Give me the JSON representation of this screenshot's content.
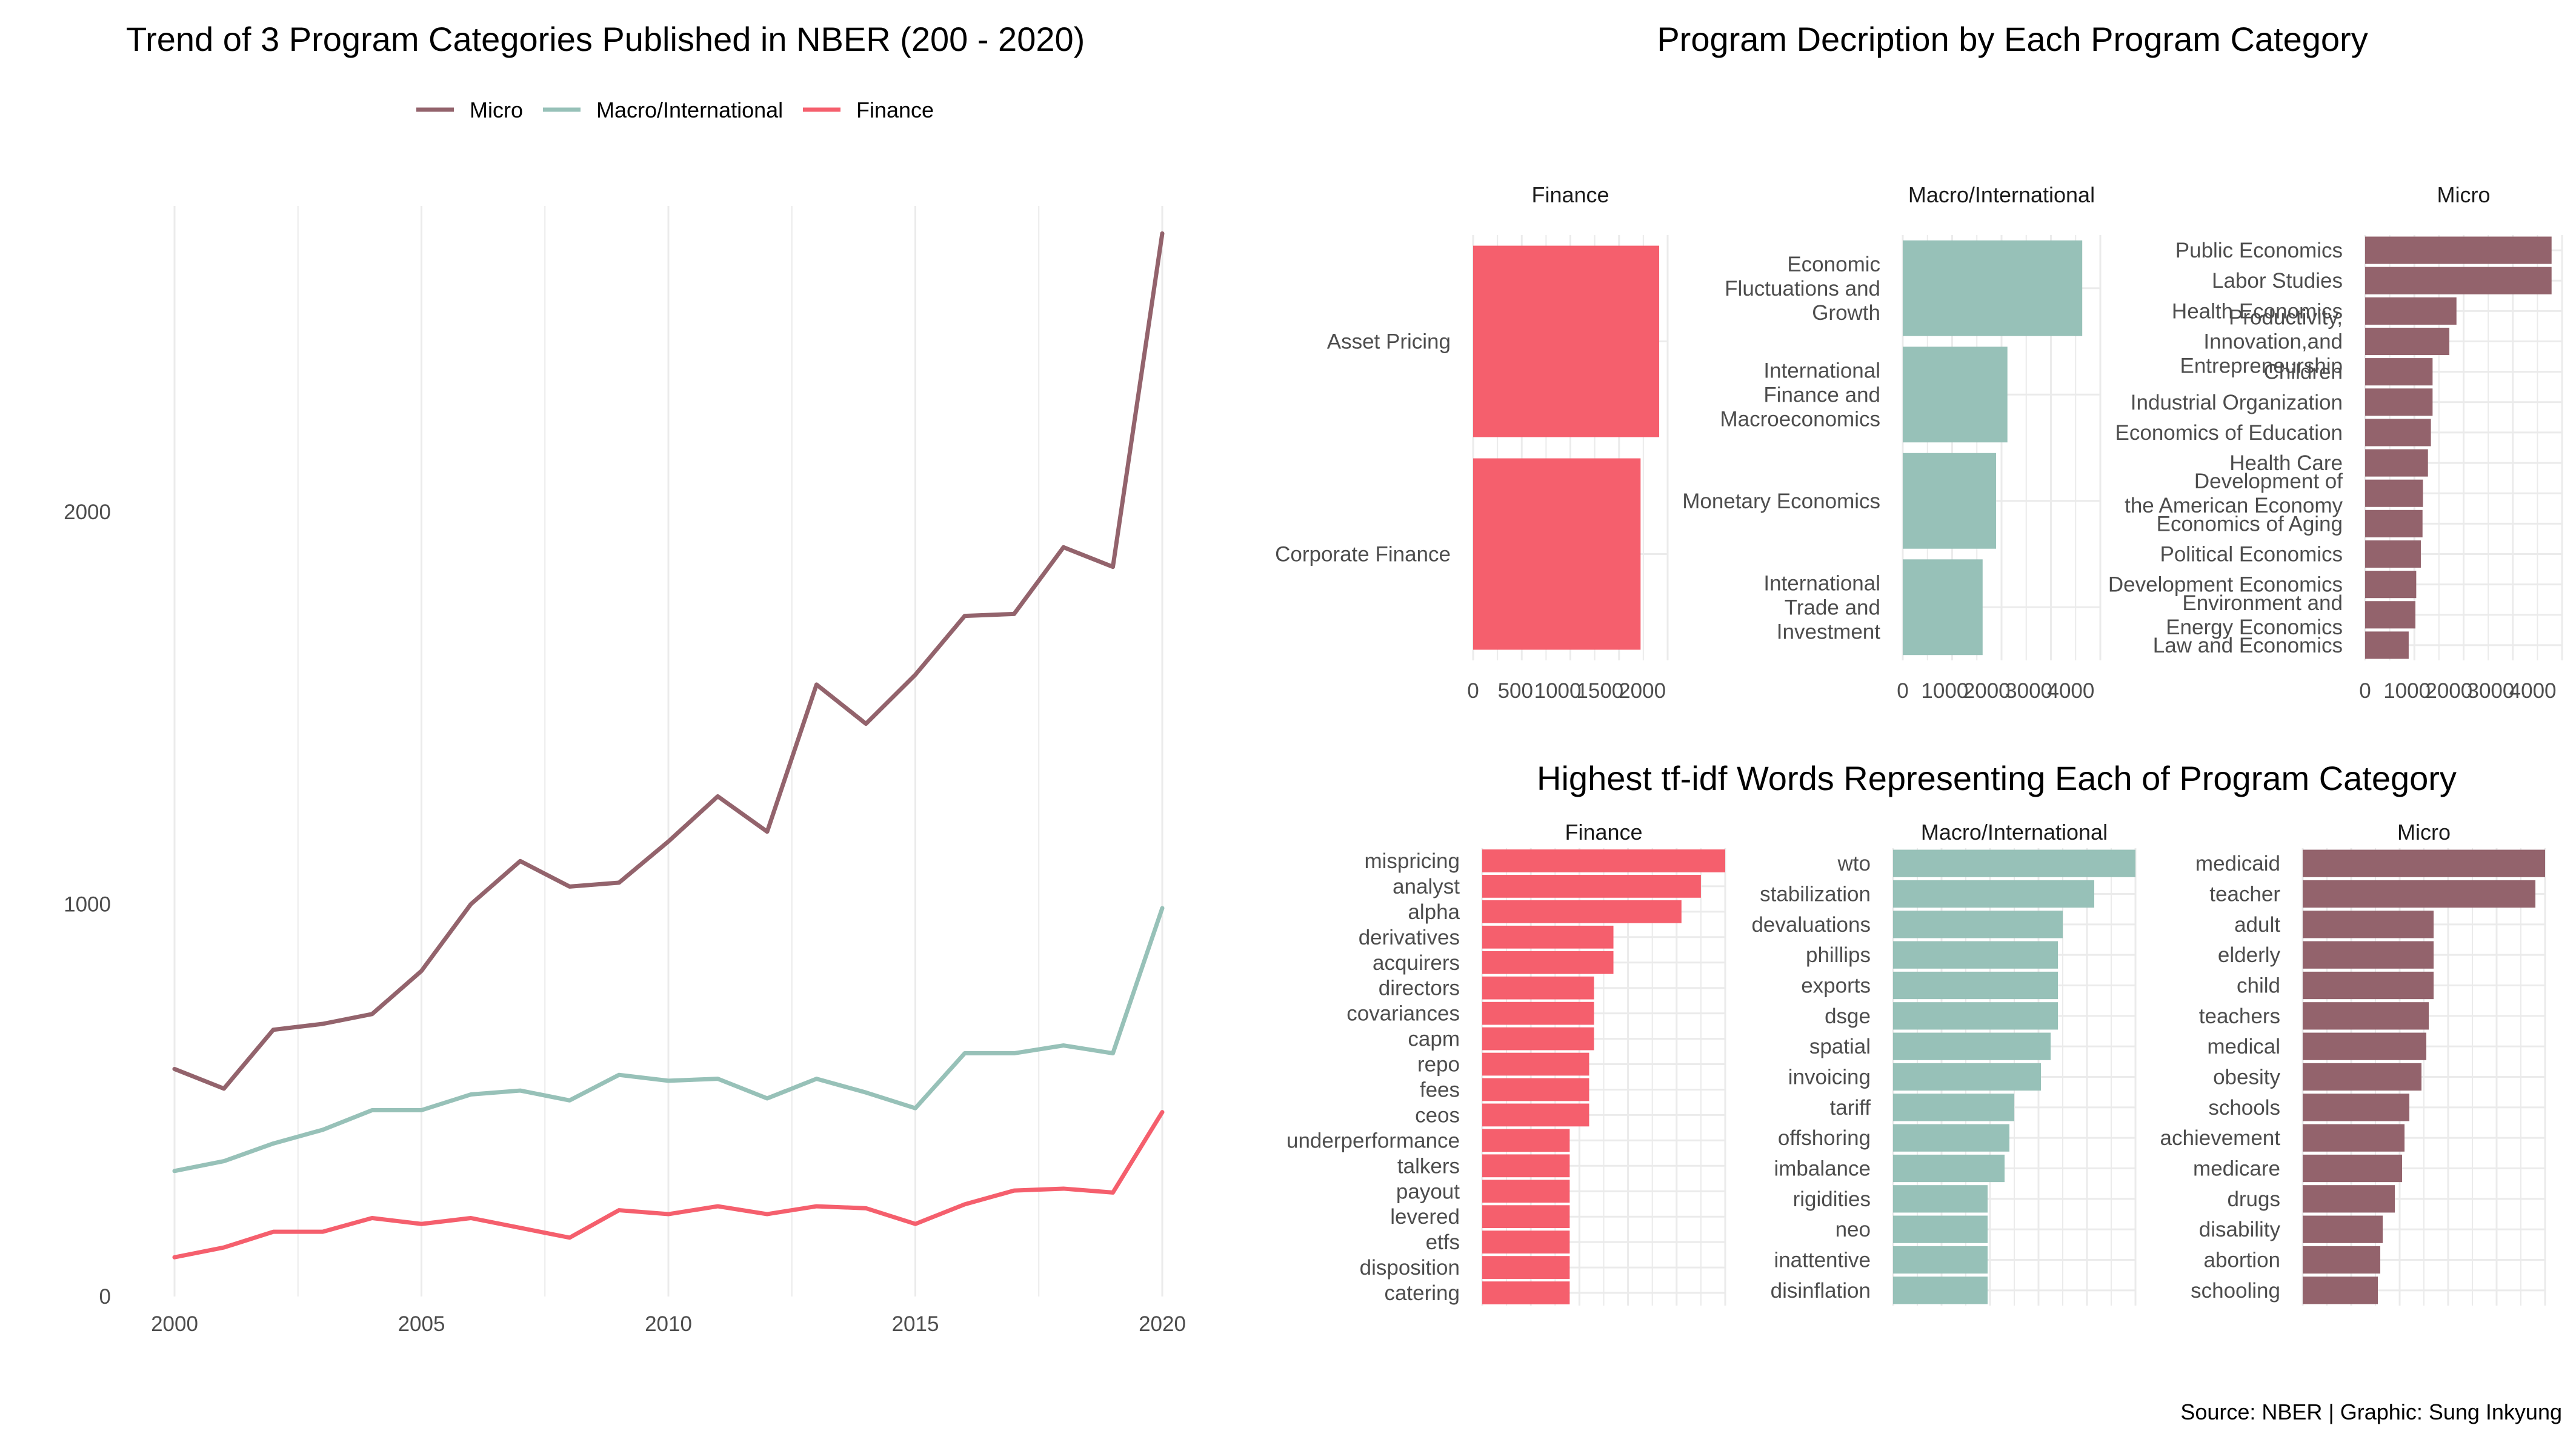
{
  "caption": "Source: NBER  | Graphic: Sung Inkyung",
  "colors": {
    "Micro": "#93636c",
    "Macro/International": "#97c1b8",
    "Finance": "#f55f6d"
  },
  "chart_data": [
    {
      "id": "trend",
      "type": "line",
      "title": "Trend of 3 Program Categories Published in NBER (200 - 2020)",
      "xlabel": "",
      "ylabel": "",
      "x": [
        2000,
        2001,
        2002,
        2003,
        2004,
        2005,
        2006,
        2007,
        2008,
        2009,
        2010,
        2011,
        2012,
        2013,
        2014,
        2015,
        2016,
        2017,
        2018,
        2019,
        2020
      ],
      "xticks": [
        2000,
        2005,
        2010,
        2015,
        2020
      ],
      "yticks": [
        0,
        1000,
        2000
      ],
      "xlim": [
        2000,
        2020
      ],
      "ylim": [
        0,
        2780
      ],
      "legend": "top",
      "grid": "major+minor vertical, major horizontal",
      "series": [
        {
          "name": "Micro",
          "values": [
            580,
            530,
            680,
            695,
            720,
            830,
            1000,
            1110,
            1045,
            1055,
            1160,
            1275,
            1185,
            1560,
            1460,
            1585,
            1735,
            1740,
            1910,
            1860,
            2710
          ]
        },
        {
          "name": "Macro/International",
          "values": [
            320,
            345,
            390,
            425,
            475,
            475,
            515,
            525,
            500,
            565,
            550,
            555,
            505,
            555,
            520,
            480,
            620,
            620,
            640,
            620,
            990
          ]
        },
        {
          "name": "Finance",
          "values": [
            100,
            125,
            165,
            165,
            200,
            185,
            200,
            175,
            150,
            220,
            210,
            230,
            210,
            230,
            225,
            185,
            235,
            270,
            275,
            265,
            470
          ]
        }
      ]
    },
    {
      "id": "program-description",
      "type": "bar",
      "title": "Program Decription by Each Program Category",
      "facets": [
        {
          "name": "Finance",
          "categories": [
            "Asset Pricing",
            "Corporate Finance"
          ],
          "values": [
            2200,
            1980
          ],
          "xticks": [
            "0",
            "500",
            "1000",
            "1500",
            "2000"
          ],
          "xlim": [
            0,
            2300
          ]
        },
        {
          "name": "Macro/International",
          "categories": [
            "Economic\nFluctuations and\nGrowth",
            "International\nFinance and\nMacroeconomics",
            "Monetary Economics",
            "International\nTrade and\nInvestment"
          ],
          "values": [
            4270,
            2490,
            2220,
            1900
          ],
          "xticks": [
            "0",
            "1000",
            "2000",
            "3000",
            "4000"
          ],
          "xlim": [
            0,
            4700
          ]
        },
        {
          "name": "Micro",
          "categories": [
            "Public Economics",
            "Labor Studies",
            "Health Economics",
            "Productivity,\nInnovation,and\nEntrepreneurship",
            "Children",
            "Industrial Organization",
            "Economics of Education",
            "Health Care",
            "Development of\nthe American Economy",
            "Economics of Aging",
            "Political Economics",
            "Development Economics",
            "Environment and\nEnergy Economics",
            "Law and Economics"
          ],
          "values": [
            4450,
            4450,
            2180,
            2010,
            1610,
            1610,
            1570,
            1500,
            1380,
            1370,
            1330,
            1220,
            1200,
            1040
          ],
          "xticks": [
            "0",
            "1000",
            "2000",
            "3000",
            "4000"
          ],
          "xlim": [
            0,
            4700
          ]
        }
      ]
    },
    {
      "id": "tfidf",
      "type": "bar",
      "title": "Highest tf-idf Words Representing Each of Program Category",
      "xticks": [],
      "facets": [
        {
          "name": "Finance",
          "categories": [
            "mispricing",
            "analyst",
            "alpha",
            "derivatives",
            "acquirers",
            "directors",
            "covariances",
            "capm",
            "repo",
            "fees",
            "ceos",
            "underperformance",
            "talkers",
            "payout",
            "levered",
            "etfs",
            "disposition",
            "catering"
          ],
          "values": [
            1.0,
            0.9,
            0.82,
            0.54,
            0.54,
            0.46,
            0.46,
            0.46,
            0.44,
            0.44,
            0.44,
            0.36,
            0.36,
            0.36,
            0.36,
            0.36,
            0.36,
            0.36
          ]
        },
        {
          "name": "Macro/International",
          "categories": [
            "wto",
            "stabilization",
            "devaluations",
            "phillips",
            "exports",
            "dsge",
            "spatial",
            "invoicing",
            "tariff",
            "offshoring",
            "imbalance",
            "rigidities",
            "neo",
            "inattentive",
            "disinflation"
          ],
          "values": [
            1.0,
            0.83,
            0.7,
            0.68,
            0.68,
            0.68,
            0.65,
            0.61,
            0.5,
            0.48,
            0.46,
            0.39,
            0.39,
            0.39,
            0.39
          ]
        },
        {
          "name": "Micro",
          "categories": [
            "medicaid",
            "teacher",
            "adult",
            "elderly",
            "child",
            "teachers",
            "medical",
            "obesity",
            "schools",
            "achievement",
            "medicare",
            "drugs",
            "disability",
            "abortion",
            "schooling"
          ],
          "values": [
            1.0,
            0.96,
            0.54,
            0.54,
            0.54,
            0.52,
            0.51,
            0.49,
            0.44,
            0.42,
            0.41,
            0.38,
            0.33,
            0.32,
            0.31
          ]
        }
      ]
    }
  ]
}
